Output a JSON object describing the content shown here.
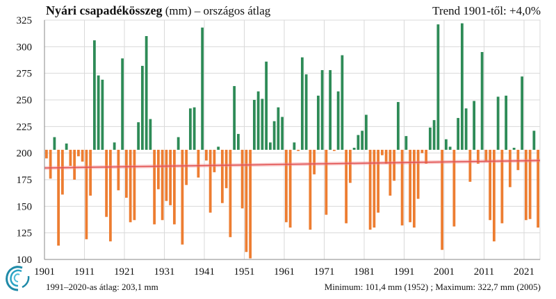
{
  "header": {
    "title_bold": "Nyári csapadékösszeg",
    "title_rest": " (mm) – országos átlag",
    "trend": "Trend 1901-től: +4,0%"
  },
  "footer": {
    "average_text": "1991–2020-as átlag: 203,1 mm",
    "minmax_text": "Minimum:  101,4 mm (1952) ; Maximum:  322,7 mm (2005)"
  },
  "colors": {
    "above": "#2e8b57",
    "below": "#ed7d31",
    "trend": "#f08080",
    "grid": "#d9d9d9"
  },
  "logo": {
    "icon": "swirl-logo-icon"
  },
  "chart_data": {
    "type": "bar",
    "baseline": 203.1,
    "ylim": [
      100,
      325
    ],
    "yticks": [
      100,
      125,
      150,
      175,
      200,
      225,
      250,
      275,
      300,
      325
    ],
    "xlim": [
      1901,
      2024
    ],
    "xticks": [
      1901,
      1911,
      1921,
      1931,
      1941,
      1951,
      1961,
      1971,
      1981,
      1991,
      2001,
      2011,
      2021
    ],
    "grid": true,
    "trend": {
      "start": [
        1901,
        186
      ],
      "end": [
        2024,
        193
      ]
    },
    "years": [
      1901,
      1902,
      1903,
      1904,
      1905,
      1906,
      1907,
      1908,
      1909,
      1910,
      1911,
      1912,
      1913,
      1914,
      1915,
      1916,
      1917,
      1918,
      1919,
      1920,
      1921,
      1922,
      1923,
      1924,
      1925,
      1926,
      1927,
      1928,
      1929,
      1930,
      1931,
      1932,
      1933,
      1934,
      1935,
      1936,
      1937,
      1938,
      1939,
      1940,
      1941,
      1942,
      1943,
      1944,
      1945,
      1946,
      1947,
      1948,
      1949,
      1950,
      1951,
      1952,
      1953,
      1954,
      1955,
      1956,
      1957,
      1958,
      1959,
      1960,
      1961,
      1962,
      1963,
      1964,
      1965,
      1966,
      1967,
      1968,
      1969,
      1970,
      1971,
      1972,
      1973,
      1974,
      1975,
      1976,
      1977,
      1978,
      1979,
      1980,
      1981,
      1982,
      1983,
      1984,
      1985,
      1986,
      1987,
      1988,
      1989,
      1990,
      1991,
      1992,
      1993,
      1994,
      1995,
      1996,
      1997,
      1998,
      1999,
      2000,
      2001,
      2002,
      2003,
      2004,
      2005,
      2006,
      2007,
      2008,
      2009,
      2010,
      2011,
      2012,
      2013,
      2014,
      2015,
      2016,
      2017,
      2018,
      2019,
      2020,
      2021,
      2022,
      2023,
      2024
    ],
    "values": [
      195,
      176,
      215,
      113,
      161,
      209,
      188,
      175,
      197,
      192,
      119,
      160,
      306,
      273,
      269,
      140,
      117,
      210,
      165,
      289,
      158,
      135,
      137,
      229,
      282,
      310,
      232,
      133,
      166,
      137,
      155,
      151,
      133,
      215,
      114,
      170,
      242,
      243,
      177,
      318,
      193,
      144,
      182,
      206,
      153,
      167,
      121,
      263,
      218,
      148,
      107,
      101,
      250,
      258,
      251,
      286,
      210,
      230,
      243,
      234,
      135,
      130,
      210,
      202,
      290,
      274,
      128,
      180,
      254,
      278,
      142,
      278,
      202,
      258,
      292,
      134,
      172,
      205,
      217,
      221,
      236,
      128,
      130,
      144,
      198,
      190,
      160,
      174,
      248,
      132,
      216,
      135,
      130,
      157,
      200,
      190,
      224,
      231,
      321,
      109,
      213,
      206,
      131,
      233,
      322,
      242,
      173,
      249,
      190,
      295,
      192,
      137,
      117,
      253,
      134,
      254,
      168,
      205,
      184,
      272,
      137,
      138,
      221,
      130
    ]
  }
}
